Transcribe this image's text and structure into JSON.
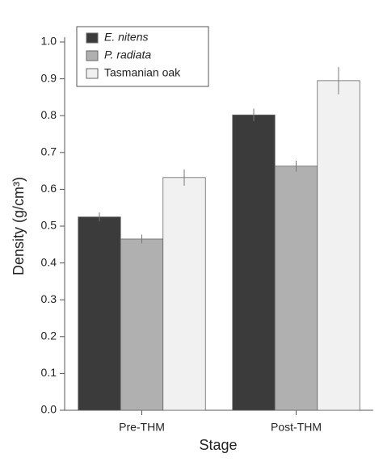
{
  "chart_data": {
    "type": "bar",
    "x_label": "Stage",
    "y_label": "Density (g/cm³)",
    "categories": [
      "Pre-THM",
      "Post-THM"
    ],
    "series": [
      {
        "name": "E. nitens",
        "color": "#3b3b3b",
        "values": [
          0.525,
          0.802
        ],
        "errors": [
          0.012,
          0.017
        ]
      },
      {
        "name": "P. radiata",
        "color": "#afb0af",
        "values": [
          0.465,
          0.663
        ],
        "errors": [
          0.012,
          0.015
        ]
      },
      {
        "name": "Tasmanian oak",
        "color": "#f1f1f1",
        "values": [
          0.632,
          0.895
        ],
        "errors": [
          0.022,
          0.037
        ]
      }
    ],
    "ylim": [
      0,
      1
    ],
    "yticks": [
      {
        "value": 0,
        "label": "0.0"
      },
      0.1,
      0.2,
      0.3,
      0.4,
      0.5,
      0.6,
      0.7,
      0.8,
      0.9,
      {
        "value": 1,
        "label": "1.0"
      }
    ],
    "legend": "upper left"
  }
}
